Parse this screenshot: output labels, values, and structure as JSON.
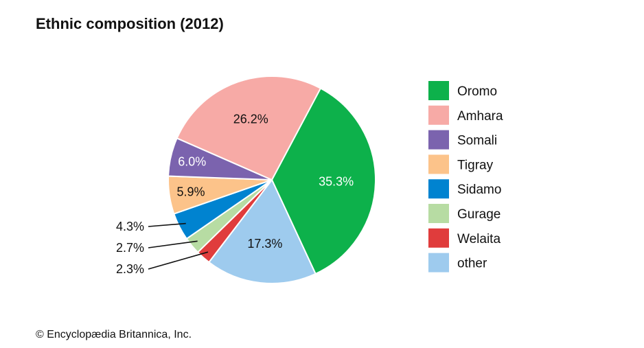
{
  "title": "Ethnic composition (2012)",
  "credit": "© Encyclopædia Britannica, Inc.",
  "chart_data": {
    "type": "pie",
    "title": "Ethnic composition (2012)",
    "slices": [
      {
        "name": "Oromo",
        "value": 35.3,
        "label": "35.3%",
        "color": "#0db14b"
      },
      {
        "name": "other",
        "value": 17.3,
        "label": "17.3%",
        "color": "#9ecbee"
      },
      {
        "name": "Welaita",
        "value": 2.3,
        "label": "2.3%",
        "color": "#e03c3c"
      },
      {
        "name": "Gurage",
        "value": 2.7,
        "label": "2.7%",
        "color": "#b7dca3"
      },
      {
        "name": "Sidamo",
        "value": 4.3,
        "label": "4.3%",
        "color": "#0083d0"
      },
      {
        "name": "Tigray",
        "value": 5.9,
        "label": "5.9%",
        "color": "#fcc38a"
      },
      {
        "name": "Somali",
        "value": 6.0,
        "label": "6.0%",
        "color": "#7b63ae"
      },
      {
        "name": "Amhara",
        "value": 26.2,
        "label": "26.2%",
        "color": "#f7aaa6"
      }
    ],
    "legend": [
      "Oromo",
      "Amhara",
      "Somali",
      "Tigray",
      "Sidamo",
      "Gurage",
      "Welaita",
      "other"
    ],
    "legend_position": "right"
  }
}
